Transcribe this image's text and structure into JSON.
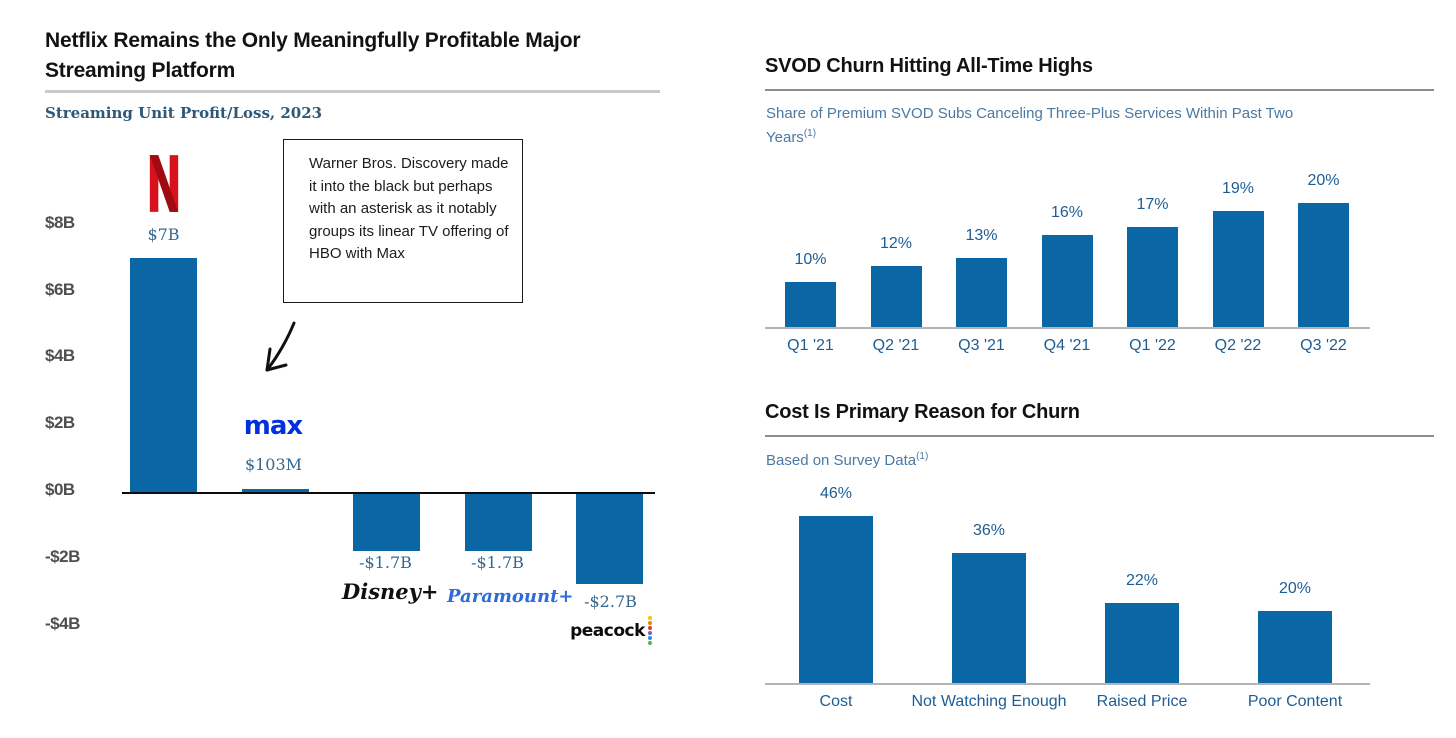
{
  "colors": {
    "bar_blue": "#0a66a5",
    "tick_blue": "#1d5d94",
    "left_label_slate": "#35688f",
    "subtitle_navy": "#2e5878",
    "subtitle_slate": "#4b79a3",
    "axis_gray": "#4f4f4f",
    "title_ink": "#121212",
    "max_blue": "#0030e0",
    "paramount_blue": "#2d6bd9",
    "netflix_red": "#d8121c",
    "netflix_red_dark": "#a00a12"
  },
  "logos": {
    "netflix_icon": "netflix-n",
    "max": "max",
    "disney_plus": "Disney+",
    "paramount_plus": "Paramount+",
    "peacock": "peacock",
    "peacock_feather_colors": [
      "#f6c700",
      "#f08300",
      "#e53838",
      "#8b57c2",
      "#2f8ede",
      "#4fb64e"
    ]
  },
  "chart_data": [
    {
      "id": "streaming-profit-loss",
      "type": "bar",
      "title": "Netflix Remains the Only Meaningfully Profitable Major Streaming Platform",
      "subtitle": "Streaming Unit Profit/Loss, 2023",
      "unit": "USD billions",
      "categories": [
        "Netflix",
        "Max",
        "Disney+",
        "Paramount+",
        "Peacock"
      ],
      "values": [
        7.0,
        0.103,
        -1.7,
        -1.7,
        -2.7
      ],
      "value_labels": [
        "$7B",
        "$103M",
        "-$1.7B",
        "-$1.7B",
        "-$2.7B"
      ],
      "y_tick_labels": [
        "$8B",
        "$6B",
        "$4B",
        "$2B",
        "$0B",
        "-$2B",
        "-$4B"
      ],
      "y_tick_values": [
        8,
        6,
        4,
        2,
        0,
        -2,
        -4
      ],
      "ylim": [
        -4,
        8
      ],
      "grid": false,
      "legend": false,
      "annotation": "Warner Bros. Discovery made it into the black but perhaps with an asterisk as it notably groups its linear TV offering of HBO with Max",
      "annotation_target": "Max bar"
    },
    {
      "id": "svod-churn",
      "type": "bar",
      "title": "SVOD Churn Hitting All-Time Highs",
      "subtitle": "Share of Premium SVOD Subs Canceling Three-Plus Services Within Past Two Years",
      "footnote_marker": "(1)",
      "unit": "percent",
      "categories": [
        "Q1 '21",
        "Q2 '21",
        "Q3 '21",
        "Q4 '21",
        "Q1 '22",
        "Q2 '22",
        "Q3 '22"
      ],
      "values": [
        10,
        12,
        13,
        16,
        17,
        19,
        20
      ],
      "value_labels": [
        "10%",
        "12%",
        "13%",
        "16%",
        "17%",
        "19%",
        "20%"
      ],
      "ylim": [
        4,
        22
      ],
      "grid": false,
      "legend": false
    },
    {
      "id": "churn-reason",
      "type": "bar",
      "title": "Cost Is Primary Reason for Churn",
      "subtitle": "Based on Survey Data",
      "footnote_marker": "(1)",
      "unit": "percent",
      "categories": [
        "Cost",
        "Not Watching Enough",
        "Raised Price",
        "Poor Content"
      ],
      "values": [
        46,
        36,
        22,
        20
      ],
      "value_labels": [
        "46%",
        "36%",
        "22%",
        "20%"
      ],
      "ylim": [
        0,
        50
      ],
      "grid": false,
      "legend": false
    }
  ]
}
